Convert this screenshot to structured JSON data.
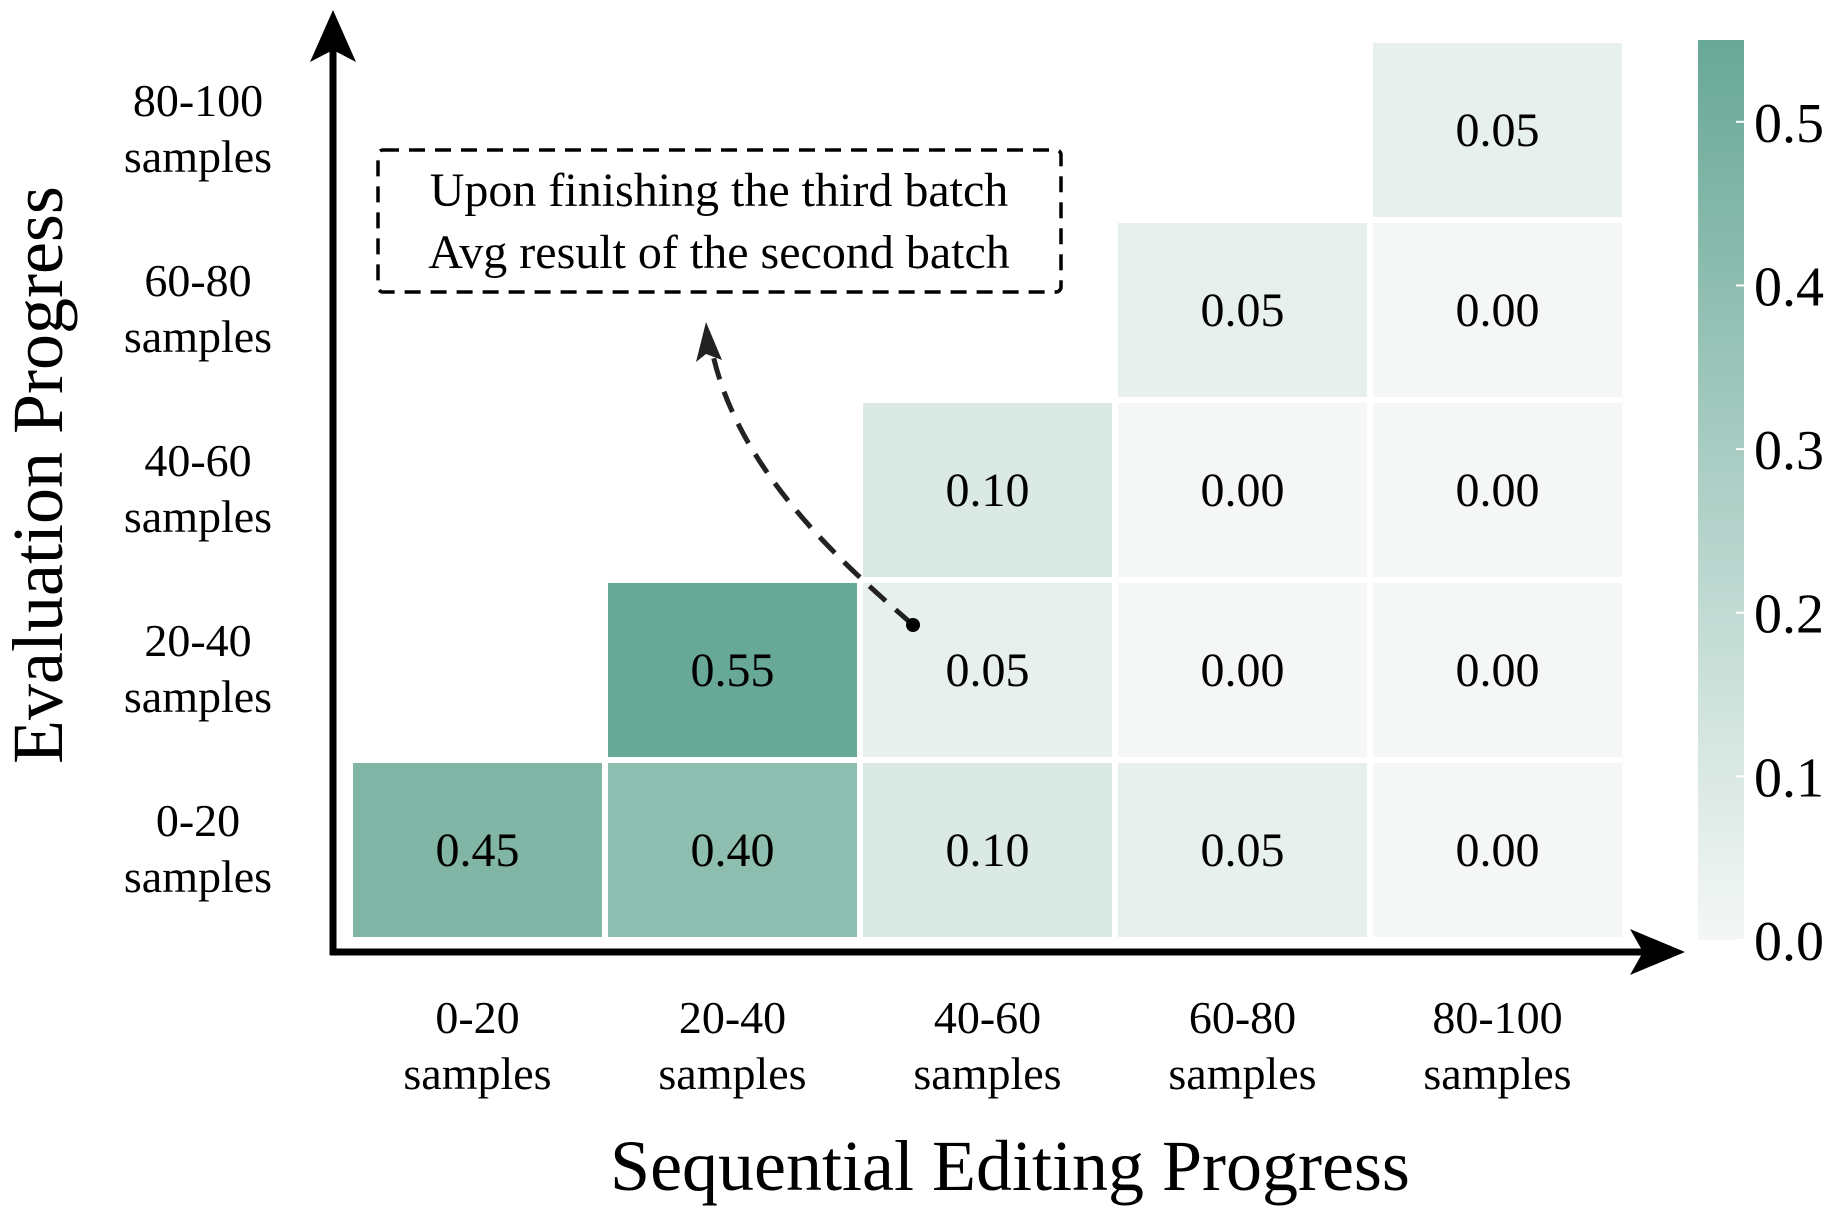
{
  "chart_data": {
    "type": "heatmap",
    "xlabel": "Sequential Editing Progress",
    "ylabel": "Evaluation Progress",
    "x_categories": [
      [
        "0-20",
        "samples"
      ],
      [
        "20-40",
        "samples"
      ],
      [
        "40-60",
        "samples"
      ],
      [
        "60-80",
        "samples"
      ],
      [
        "80-100",
        "samples"
      ]
    ],
    "y_categories": [
      [
        "0-20",
        "samples"
      ],
      [
        "20-40",
        "samples"
      ],
      [
        "40-60",
        "samples"
      ],
      [
        "60-80",
        "samples"
      ],
      [
        "80-100",
        "samples"
      ]
    ],
    "cells": [
      {
        "x": 0,
        "y": 0,
        "value": 0.45,
        "label": "0.45"
      },
      {
        "x": 1,
        "y": 0,
        "value": 0.4,
        "label": "0.40"
      },
      {
        "x": 2,
        "y": 0,
        "value": 0.1,
        "label": "0.10"
      },
      {
        "x": 3,
        "y": 0,
        "value": 0.05,
        "label": "0.05"
      },
      {
        "x": 4,
        "y": 0,
        "value": 0.0,
        "label": "0.00"
      },
      {
        "x": 1,
        "y": 1,
        "value": 0.55,
        "label": "0.55"
      },
      {
        "x": 2,
        "y": 1,
        "value": 0.05,
        "label": "0.05"
      },
      {
        "x": 3,
        "y": 1,
        "value": 0.0,
        "label": "0.00"
      },
      {
        "x": 4,
        "y": 1,
        "value": 0.0,
        "label": "0.00"
      },
      {
        "x": 2,
        "y": 2,
        "value": 0.1,
        "label": "0.10"
      },
      {
        "x": 3,
        "y": 2,
        "value": 0.0,
        "label": "0.00"
      },
      {
        "x": 4,
        "y": 2,
        "value": 0.0,
        "label": "0.00"
      },
      {
        "x": 3,
        "y": 3,
        "value": 0.05,
        "label": "0.05"
      },
      {
        "x": 4,
        "y": 3,
        "value": 0.0,
        "label": "0.00"
      },
      {
        "x": 4,
        "y": 4,
        "value": 0.05,
        "label": "0.05"
      }
    ],
    "colorbar": {
      "min": 0.0,
      "max": 0.55,
      "ticks": [
        {
          "value": 0.0,
          "label": "0.0"
        },
        {
          "value": 0.1,
          "label": "0.1"
        },
        {
          "value": 0.2,
          "label": "0.2"
        },
        {
          "value": 0.3,
          "label": "0.3"
        },
        {
          "value": 0.4,
          "label": "0.4"
        },
        {
          "value": 0.5,
          "label": "0.5"
        }
      ],
      "color_low": "#f4f7f6",
      "color_high": "#68a896"
    },
    "annotation": {
      "lines": [
        "Upon finishing the third batch",
        "Avg result of the second batch"
      ],
      "points_to_cell": {
        "x": 2,
        "y": 1
      }
    }
  }
}
